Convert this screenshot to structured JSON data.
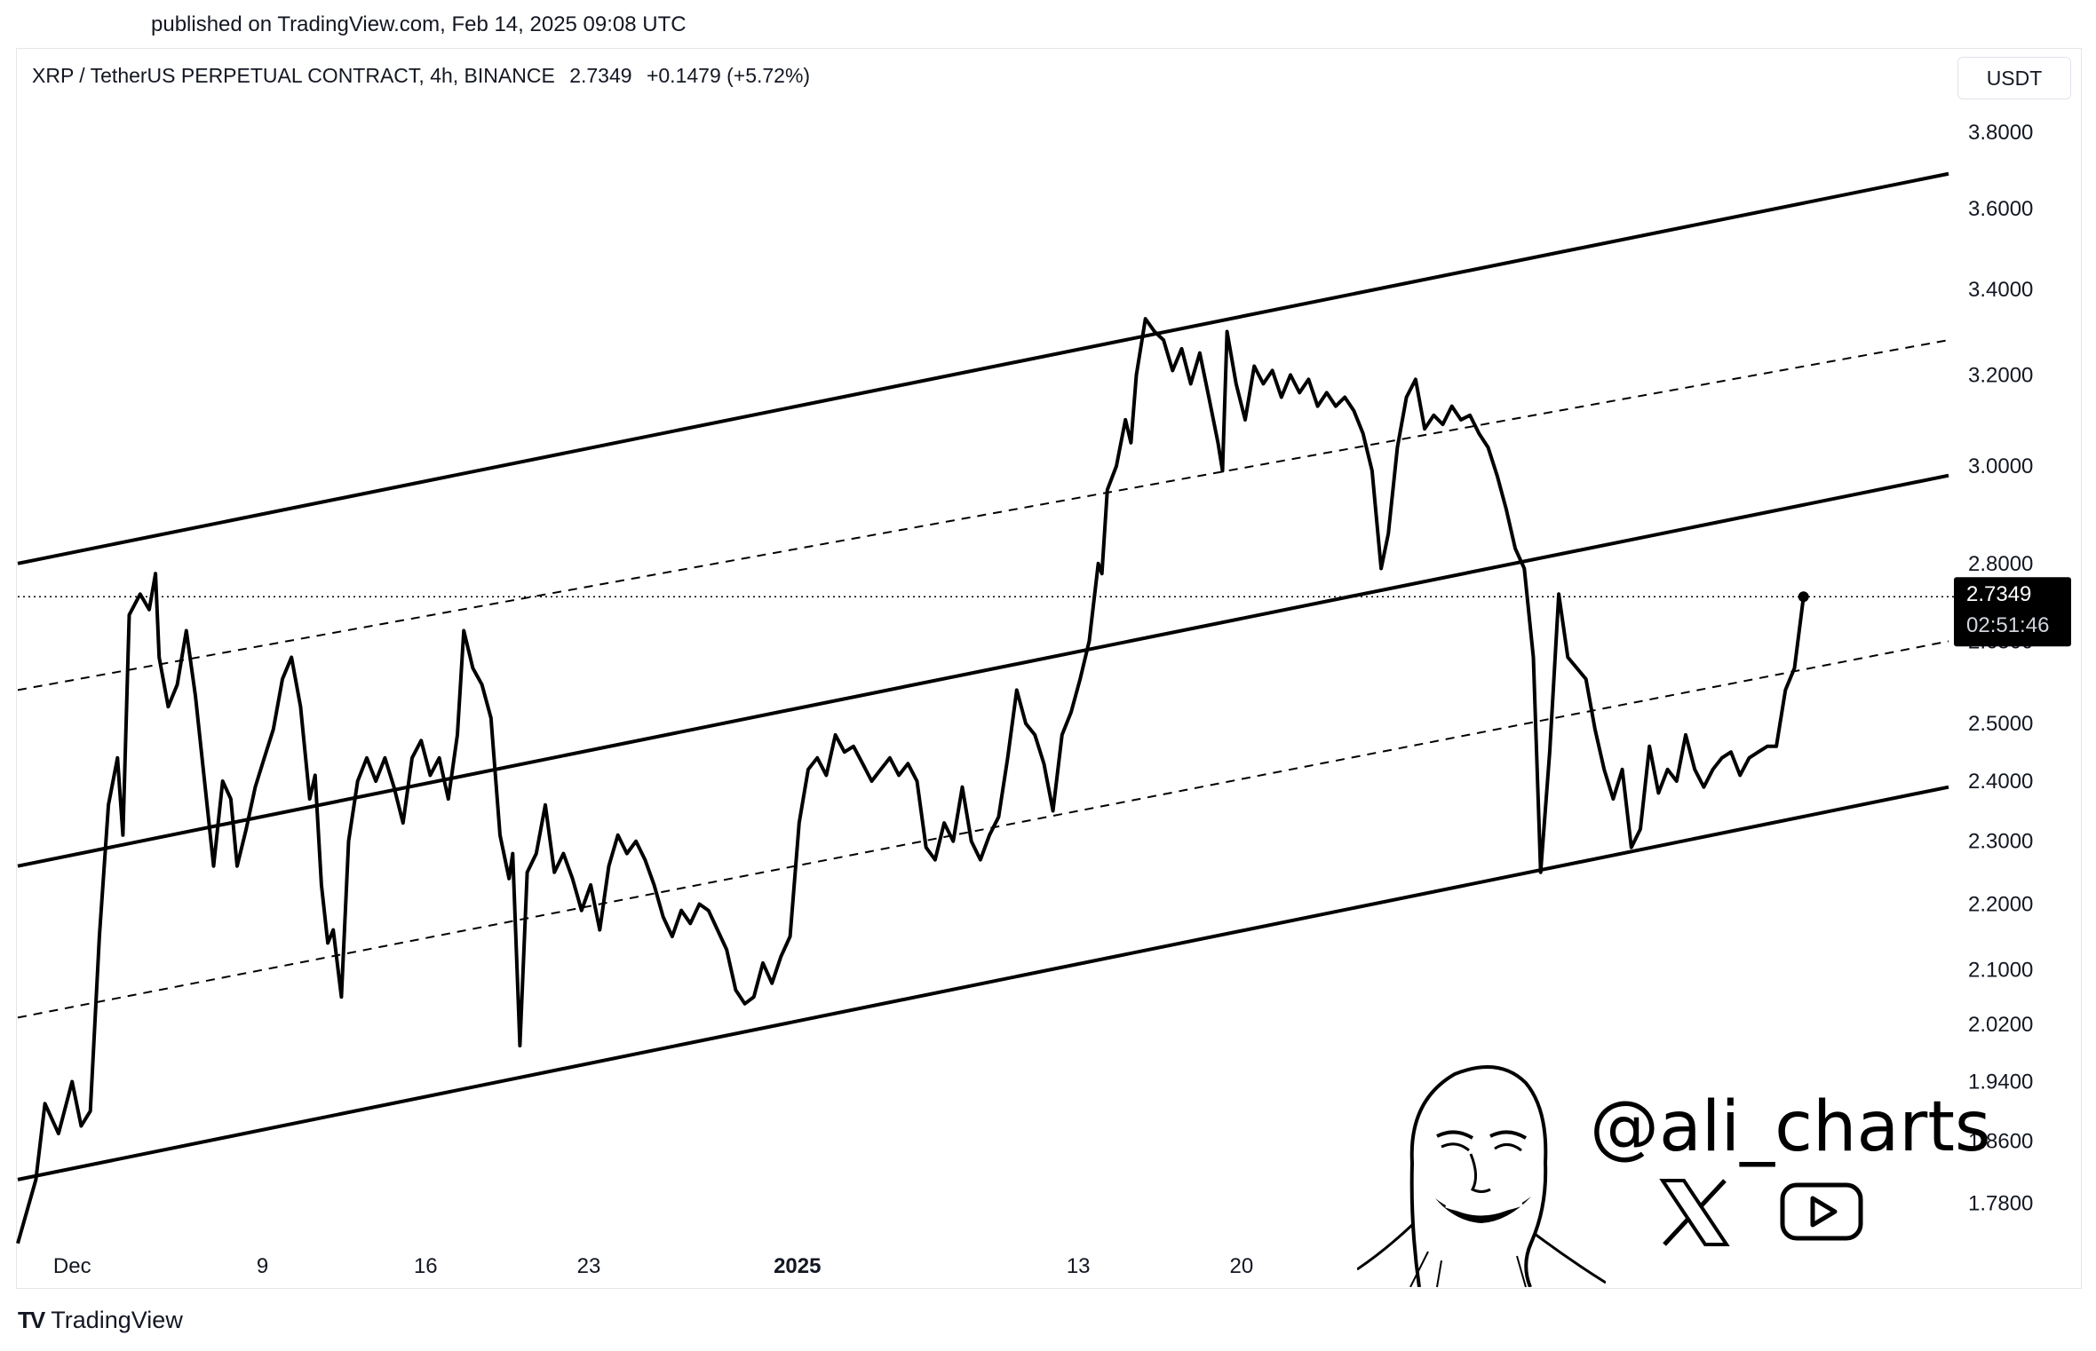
{
  "header": {
    "published": "published on TradingView.com, Feb 14, 2025 09:08 UTC"
  },
  "legend": {
    "symbol": "XRP / TetherUS PERPETUAL CONTRACT, 4h, BINANCE",
    "price": "2.7349",
    "change": "+0.1479 (+5.72%)"
  },
  "currency_button": "USDT",
  "price_tag": {
    "value": "2.7349",
    "countdown": "02:51:46"
  },
  "footer": {
    "brand": "TradingView",
    "brand_mark": "TV"
  },
  "watermark": {
    "handle": "@ali_charts",
    "icons": [
      "x-logo-icon",
      "youtube-play-icon",
      "cartoon-face-icon"
    ]
  },
  "colors": {
    "line": "#000000",
    "background": "#ffffff",
    "price_tag_bg": "#000000",
    "price_tag_text": "#ffffff"
  },
  "chart_data": {
    "type": "line",
    "series": [
      {
        "values": [
          [
            0,
            1.73
          ],
          [
            2,
            1.81
          ],
          [
            3,
            1.91
          ],
          [
            4.5,
            1.87
          ],
          [
            6,
            1.94
          ],
          [
            7,
            1.88
          ],
          [
            8,
            1.9
          ],
          [
            9,
            2.15
          ],
          [
            10,
            2.36
          ],
          [
            11,
            2.44
          ],
          [
            11.6,
            2.31
          ],
          [
            12.3,
            2.7
          ],
          [
            13.5,
            2.74
          ],
          [
            14.5,
            2.71
          ],
          [
            15.2,
            2.78
          ],
          [
            15.6,
            2.62
          ],
          [
            16.6,
            2.53
          ],
          [
            17.6,
            2.57
          ],
          [
            18.6,
            2.67
          ],
          [
            19.6,
            2.55
          ],
          [
            20.6,
            2.4
          ],
          [
            21.6,
            2.26
          ],
          [
            22.6,
            2.4
          ],
          [
            23.5,
            2.37
          ],
          [
            24.2,
            2.26
          ],
          [
            25.2,
            2.32
          ],
          [
            26.2,
            2.39
          ],
          [
            27.2,
            2.44
          ],
          [
            28.2,
            2.49
          ],
          [
            29.2,
            2.58
          ],
          [
            30.2,
            2.62
          ],
          [
            31.2,
            2.53
          ],
          [
            32.2,
            2.37
          ],
          [
            32.8,
            2.41
          ],
          [
            33.5,
            2.23
          ],
          [
            34.2,
            2.14
          ],
          [
            34.8,
            2.16
          ],
          [
            35.7,
            2.06
          ],
          [
            36.5,
            2.3
          ],
          [
            37.5,
            2.4
          ],
          [
            38.5,
            2.44
          ],
          [
            39.5,
            2.4
          ],
          [
            40.5,
            2.44
          ],
          [
            41.5,
            2.39
          ],
          [
            42.5,
            2.33
          ],
          [
            43.5,
            2.44
          ],
          [
            44.5,
            2.47
          ],
          [
            45.5,
            2.41
          ],
          [
            46.5,
            2.44
          ],
          [
            47.5,
            2.37
          ],
          [
            48.5,
            2.48
          ],
          [
            49.2,
            2.67
          ],
          [
            50.2,
            2.6
          ],
          [
            51.2,
            2.57
          ],
          [
            52.2,
            2.51
          ],
          [
            53.2,
            2.31
          ],
          [
            54.2,
            2.24
          ],
          [
            54.6,
            2.28
          ],
          [
            55.4,
            1.99
          ],
          [
            56.2,
            2.25
          ],
          [
            57.2,
            2.28
          ],
          [
            58.2,
            2.36
          ],
          [
            59.2,
            2.25
          ],
          [
            60.2,
            2.28
          ],
          [
            61.2,
            2.24
          ],
          [
            62.2,
            2.19
          ],
          [
            63.2,
            2.23
          ],
          [
            64.2,
            2.16
          ],
          [
            65.2,
            2.26
          ],
          [
            66.2,
            2.31
          ],
          [
            67.2,
            2.28
          ],
          [
            68.2,
            2.3
          ],
          [
            69.2,
            2.27
          ],
          [
            70.2,
            2.23
          ],
          [
            71.2,
            2.18
          ],
          [
            72.2,
            2.15
          ],
          [
            73.2,
            2.19
          ],
          [
            74.2,
            2.17
          ],
          [
            75.2,
            2.2
          ],
          [
            76.2,
            2.19
          ],
          [
            77.2,
            2.16
          ],
          [
            78.2,
            2.13
          ],
          [
            79.2,
            2.07
          ],
          [
            80.2,
            2.05
          ],
          [
            81.2,
            2.06
          ],
          [
            82.2,
            2.11
          ],
          [
            83.2,
            2.08
          ],
          [
            84.2,
            2.12
          ],
          [
            85.2,
            2.15
          ],
          [
            86.2,
            2.33
          ],
          [
            87.2,
            2.42
          ],
          [
            88.2,
            2.44
          ],
          [
            89.2,
            2.41
          ],
          [
            90.2,
            2.48
          ],
          [
            91.2,
            2.45
          ],
          [
            92.2,
            2.46
          ],
          [
            93.2,
            2.43
          ],
          [
            94.2,
            2.4
          ],
          [
            95.2,
            2.42
          ],
          [
            96.2,
            2.44
          ],
          [
            97.2,
            2.41
          ],
          [
            98.2,
            2.43
          ],
          [
            99.2,
            2.4
          ],
          [
            100.2,
            2.29
          ],
          [
            101.2,
            2.27
          ],
          [
            102.2,
            2.33
          ],
          [
            103.2,
            2.3
          ],
          [
            104.2,
            2.39
          ],
          [
            105.2,
            2.3
          ],
          [
            106.2,
            2.27
          ],
          [
            107.2,
            2.31
          ],
          [
            108.2,
            2.34
          ],
          [
            109.2,
            2.44
          ],
          [
            110.2,
            2.56
          ],
          [
            111.2,
            2.5
          ],
          [
            112.2,
            2.48
          ],
          [
            113.2,
            2.43
          ],
          [
            114.2,
            2.35
          ],
          [
            115.2,
            2.48
          ],
          [
            116.2,
            2.52
          ],
          [
            117.2,
            2.58
          ],
          [
            118.2,
            2.65
          ],
          [
            119.2,
            2.8
          ],
          [
            119.6,
            2.78
          ],
          [
            120.2,
            2.95
          ],
          [
            121.2,
            3.0
          ],
          [
            122.2,
            3.1
          ],
          [
            122.8,
            3.05
          ],
          [
            123.4,
            3.2
          ],
          [
            124.4,
            3.33
          ],
          [
            125.4,
            3.3
          ],
          [
            126.4,
            3.28
          ],
          [
            127.4,
            3.21
          ],
          [
            128.4,
            3.26
          ],
          [
            129.4,
            3.18
          ],
          [
            130.4,
            3.25
          ],
          [
            131.4,
            3.15
          ],
          [
            132.4,
            3.05
          ],
          [
            132.9,
            2.99
          ],
          [
            133.4,
            3.3
          ],
          [
            134.4,
            3.18
          ],
          [
            135.4,
            3.1
          ],
          [
            136.4,
            3.22
          ],
          [
            137.4,
            3.18
          ],
          [
            138.4,
            3.21
          ],
          [
            139.4,
            3.15
          ],
          [
            140.4,
            3.2
          ],
          [
            141.4,
            3.16
          ],
          [
            142.4,
            3.19
          ],
          [
            143.4,
            3.13
          ],
          [
            144.4,
            3.16
          ],
          [
            145.4,
            3.13
          ],
          [
            146.4,
            3.15
          ],
          [
            147.4,
            3.12
          ],
          [
            148.4,
            3.07
          ],
          [
            149.4,
            2.99
          ],
          [
            150.4,
            2.79
          ],
          [
            151.2,
            2.86
          ],
          [
            152.2,
            3.04
          ],
          [
            153.2,
            3.15
          ],
          [
            154.2,
            3.19
          ],
          [
            155.2,
            3.08
          ],
          [
            156.2,
            3.11
          ],
          [
            157.2,
            3.09
          ],
          [
            158.2,
            3.13
          ],
          [
            159.2,
            3.1
          ],
          [
            160.2,
            3.11
          ],
          [
            161.2,
            3.07
          ],
          [
            162.2,
            3.04
          ],
          [
            163.2,
            2.98
          ],
          [
            164.2,
            2.91
          ],
          [
            165.2,
            2.83
          ],
          [
            166.2,
            2.79
          ],
          [
            167.2,
            2.62
          ],
          [
            168.0,
            2.25
          ],
          [
            169.0,
            2.45
          ],
          [
            170.0,
            2.74
          ],
          [
            171.0,
            2.62
          ],
          [
            172.0,
            2.6
          ],
          [
            173.0,
            2.58
          ],
          [
            174.0,
            2.49
          ],
          [
            175.0,
            2.42
          ],
          [
            176.0,
            2.37
          ],
          [
            177.0,
            2.42
          ],
          [
            178.0,
            2.29
          ],
          [
            179.0,
            2.32
          ],
          [
            180.0,
            2.46
          ],
          [
            181.0,
            2.38
          ],
          [
            182.0,
            2.42
          ],
          [
            183.0,
            2.4
          ],
          [
            184.0,
            2.48
          ],
          [
            185.0,
            2.42
          ],
          [
            186.0,
            2.39
          ],
          [
            187.0,
            2.42
          ],
          [
            188.0,
            2.44
          ],
          [
            189.0,
            2.45
          ],
          [
            190.0,
            2.41
          ],
          [
            191.0,
            2.44
          ],
          [
            192.0,
            2.45
          ],
          [
            193.0,
            2.46
          ],
          [
            194.0,
            2.46
          ],
          [
            195.0,
            2.56
          ],
          [
            196.0,
            2.6
          ],
          [
            197.0,
            2.7349
          ]
        ]
      }
    ],
    "channel_lines": [
      {
        "style": "solid",
        "from": [
          0,
          2.8
        ],
        "to": [
          213,
          3.69
        ]
      },
      {
        "style": "dashed",
        "from": [
          0,
          2.56
        ],
        "to": [
          213,
          3.28
        ]
      },
      {
        "style": "solid",
        "from": [
          0,
          2.26
        ],
        "to": [
          213,
          2.98
        ]
      },
      {
        "style": "dashed",
        "from": [
          0,
          2.03
        ],
        "to": [
          213,
          2.65
        ]
      },
      {
        "style": "solid",
        "from": [
          0,
          1.81
        ],
        "to": [
          213,
          2.39
        ]
      }
    ],
    "current_price_line": 2.7349,
    "x_tick_labels": [
      {
        "x": 6,
        "label": "Dec",
        "bold": false
      },
      {
        "x": 27,
        "label": "9",
        "bold": false
      },
      {
        "x": 45,
        "label": "16",
        "bold": false
      },
      {
        "x": 63,
        "label": "23",
        "bold": false
      },
      {
        "x": 86,
        "label": "2025",
        "bold": true
      },
      {
        "x": 117,
        "label": "13",
        "bold": false
      },
      {
        "x": 135,
        "label": "20",
        "bold": false
      }
    ],
    "y_ticks": [
      1.78,
      1.86,
      1.94,
      2.02,
      2.1,
      2.2,
      2.3,
      2.4,
      2.5,
      2.65,
      2.8,
      3.0,
      3.2,
      3.4,
      3.6,
      3.8
    ],
    "y_tick_labels": [
      "1.7800",
      "1.8600",
      "1.9400",
      "2.0200",
      "2.1000",
      "2.2000",
      "2.3000",
      "2.4000",
      "2.5000",
      "2.6500",
      "2.8000",
      "3.0000",
      "3.2000",
      "3.4000",
      "3.6000",
      "3.8000"
    ],
    "ylim": [
      1.72,
      3.87
    ],
    "xlim": [
      0,
      213
    ],
    "y_scale": "log",
    "grid": false
  }
}
